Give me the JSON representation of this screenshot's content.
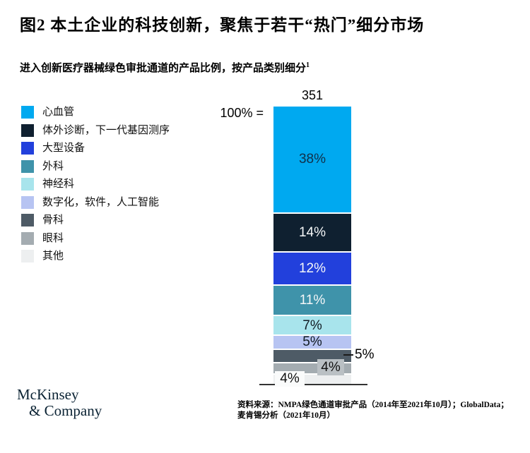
{
  "header": {
    "title": "图2 本土企业的科技创新，聚焦于若干“热门”细分市场",
    "subtitle": "进入创新医疗器械绿色审批通道的产品比例，按产品类别细分",
    "subtitle_footnote_marker": "1"
  },
  "chart_data": {
    "type": "bar",
    "variant": "single-stacked-column",
    "title": "进入创新医疗器械绿色审批通道的产品比例，按产品类别细分",
    "total_label": "351",
    "total_value": 351,
    "base_label": "100% =",
    "unit": "%",
    "ylim": [
      0,
      100
    ],
    "grid": false,
    "legend_position": "left",
    "categories": [
      "心血管",
      "体外诊断，下一代基因测序",
      "大型设备",
      "外科",
      "神经科",
      "数字化，软件，人工智能",
      "骨科",
      "眼科",
      "其他"
    ],
    "series": [
      {
        "name": "心血管",
        "value": 38,
        "label": "38%",
        "color": "#00A9F0",
        "text_color": "#113049",
        "label_placement": "inside"
      },
      {
        "name": "体外诊断，下一代基因测序",
        "value": 14,
        "label": "14%",
        "color": "#0F2030",
        "text_color": "#F5F7F8",
        "label_placement": "inside"
      },
      {
        "name": "大型设备",
        "value": 12,
        "label": "12%",
        "color": "#2240DC",
        "text_color": "#F5F7F8",
        "label_placement": "inside"
      },
      {
        "name": "外科",
        "value": 11,
        "label": "11%",
        "color": "#3F93AA",
        "text_color": "#F5F7F8",
        "label_placement": "inside"
      },
      {
        "name": "神经科",
        "value": 7,
        "label": "7%",
        "color": "#A8E4EC",
        "text_color": "#111C24",
        "label_placement": "inside"
      },
      {
        "name": "数字化，软件，人工智能",
        "value": 5,
        "label": "5%",
        "color": "#B7C4F2",
        "text_color": "#111C24",
        "label_placement": "inside"
      },
      {
        "name": "骨科",
        "value": 5,
        "label": "5%",
        "color": "#4E5B66",
        "text_color": "#111111",
        "label_placement": "callout-right"
      },
      {
        "name": "眼科",
        "value": 4,
        "label": "4%",
        "color": "#A4ACB1",
        "text_color": "#111111",
        "label_placement": "box-right",
        "label_bg": "#BAC0C4"
      },
      {
        "name": "其他",
        "value": 4,
        "label": "4%",
        "color": "#EDEFF0",
        "text_color": "#111111",
        "label_placement": "box-left",
        "label_bg": "#FAFBFB"
      }
    ]
  },
  "footer": {
    "logo_line1": "McKinsey",
    "logo_line2": "& Company",
    "source_line1": "资料来源：NMPA绿色通道审批产品（2014年至2021年10月）；GlobalData；",
    "source_line2": "麦肯锡分析（2021年10月）"
  }
}
